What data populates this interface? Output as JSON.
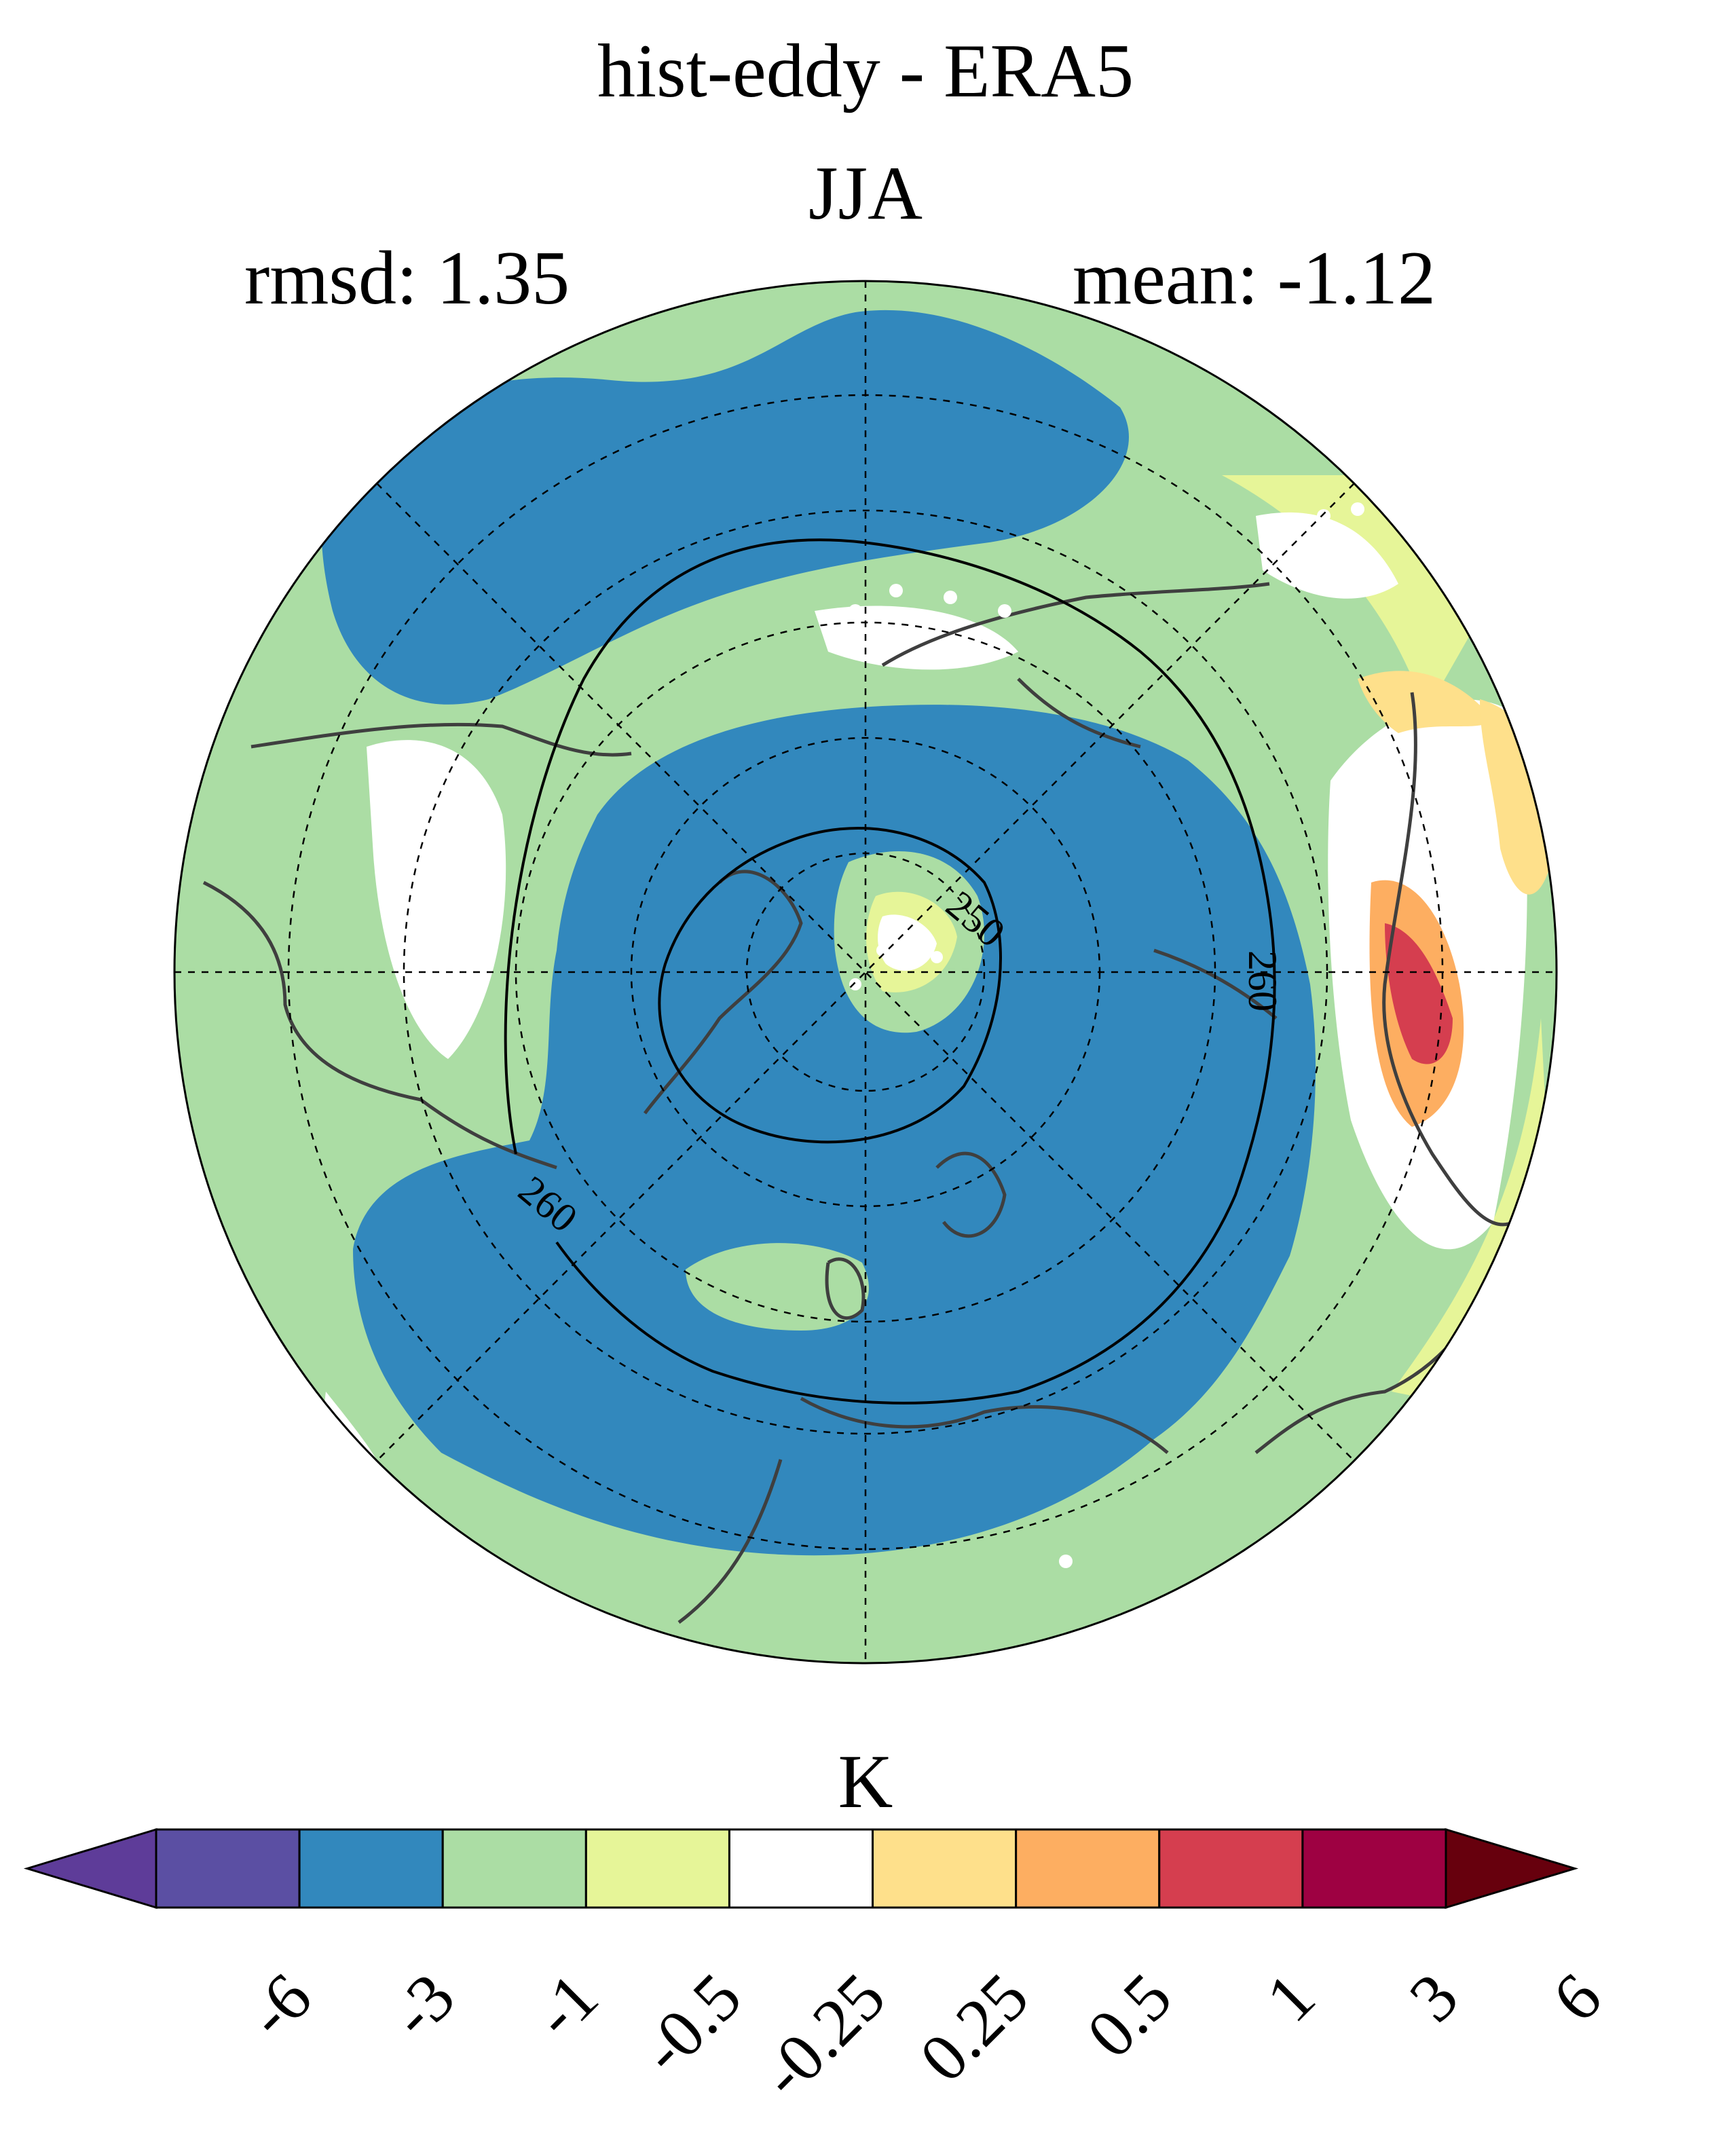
{
  "figure": {
    "title": "hist-eddy - ERA5",
    "season": "JJA",
    "rmsd_label": "rmsd: 1.35",
    "mean_label": "mean: -1.12",
    "units": "K"
  },
  "map": {
    "projection": "north-polar-stereographic",
    "contour_labels": [
      "250",
      "260",
      "260"
    ],
    "colors": {
      "land_outline": "#3f3f3f",
      "grid": "#000000"
    }
  },
  "colorbar": {
    "ticks": [
      "-6",
      "-3",
      "-1",
      "-0.5",
      "-0.25",
      "0.25",
      "0.5",
      "1",
      "3",
      "6"
    ],
    "colors": [
      "#5e3c99",
      "#5b4fa3",
      "#3288bd",
      "#abdda4",
      "#e6f598",
      "#ffffff",
      "#fee08b",
      "#fdae61",
      "#d53e4f",
      "#9e0142",
      "#67000d"
    ]
  }
}
